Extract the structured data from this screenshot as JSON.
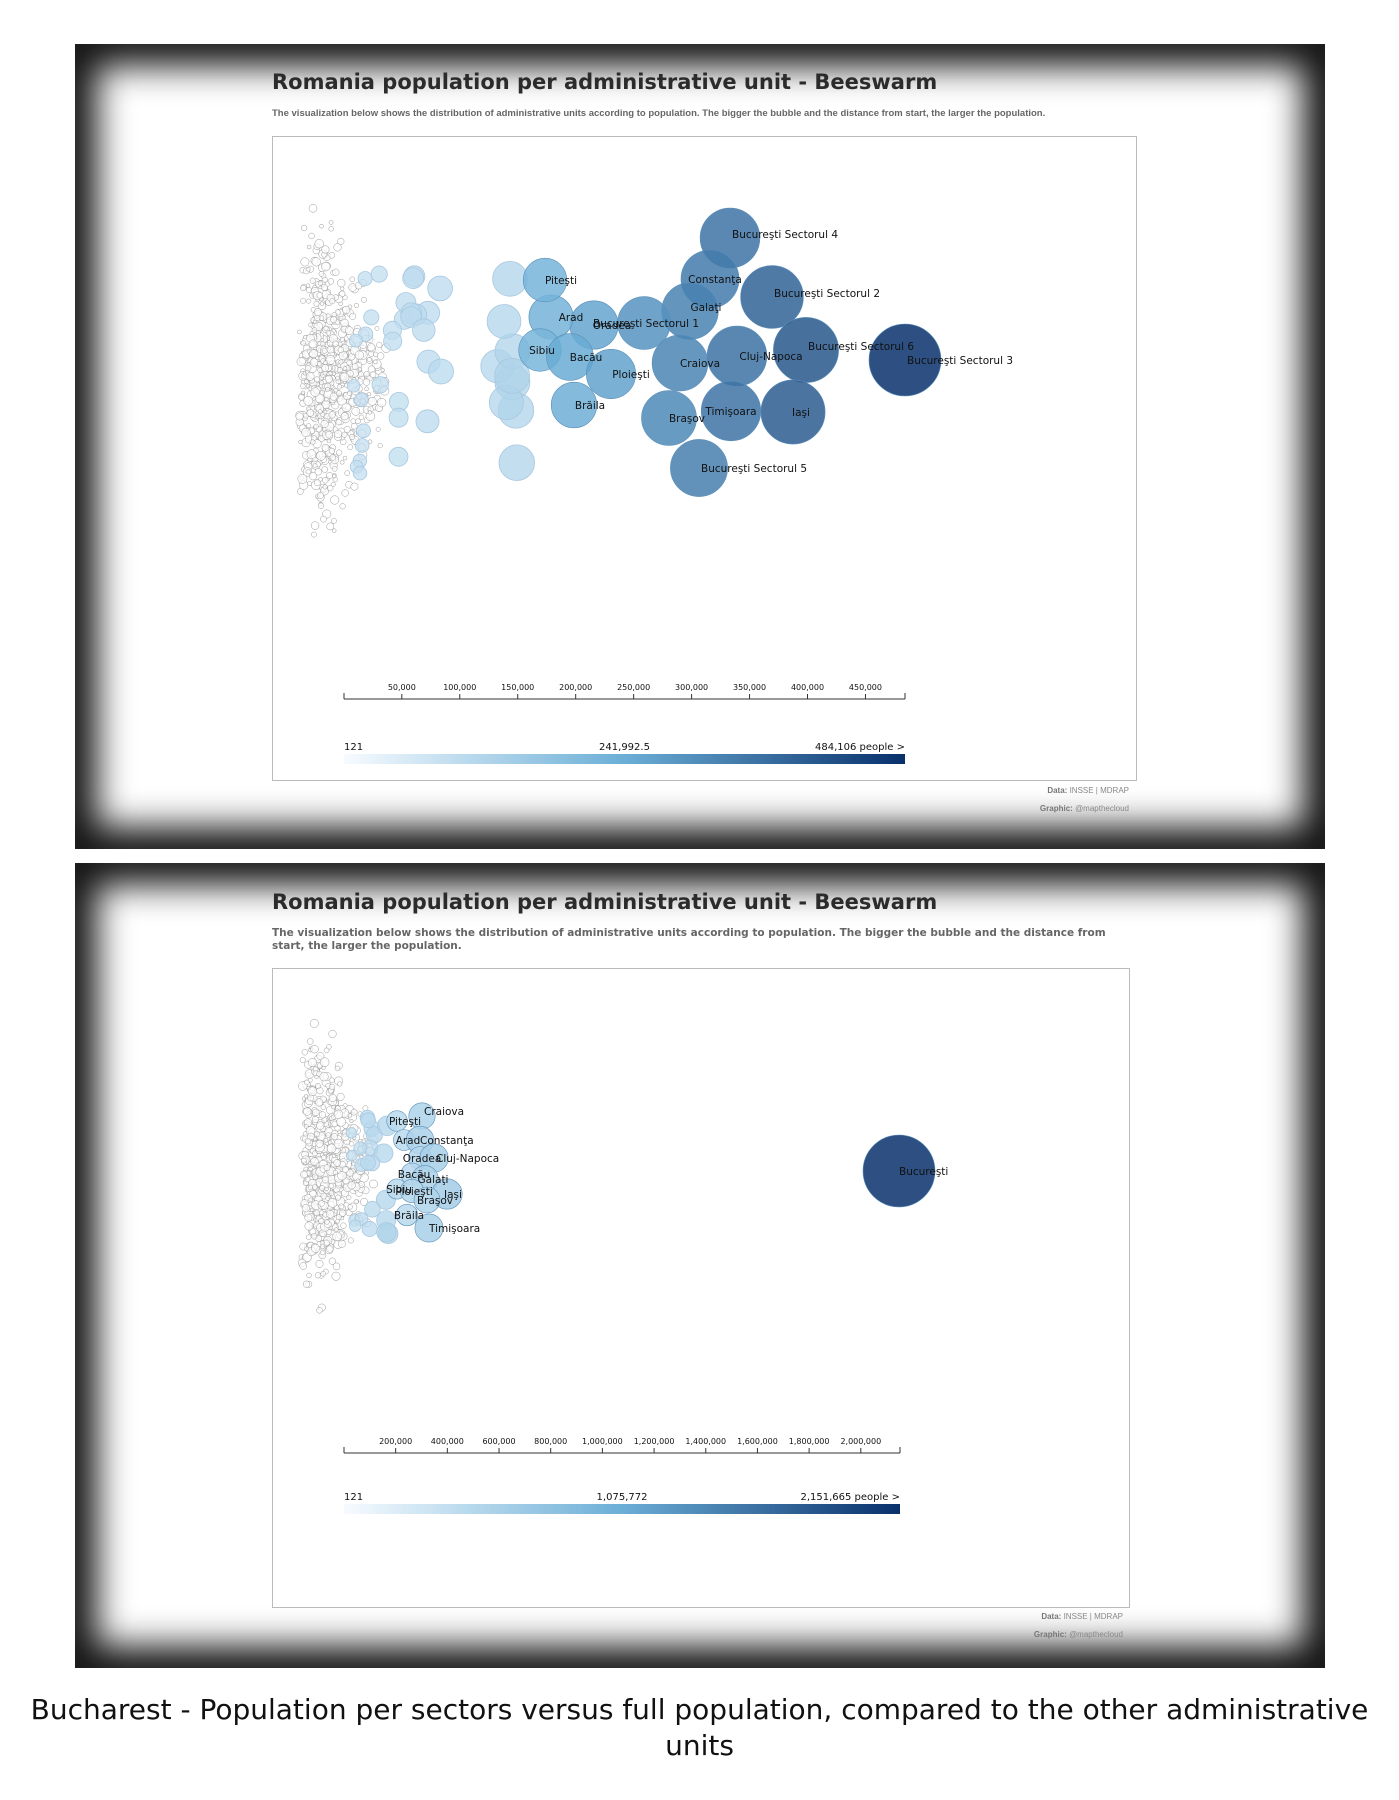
{
  "caption": "Bucharest - Population per sectors versus full population, compared to the other administrative units",
  "colors": {
    "low": "#f7fbff",
    "mid": "#6baed6",
    "high": "#08306b"
  },
  "chart_data": [
    {
      "type": "beeswarm",
      "title": "Romania population per administrative unit - Beeswarm",
      "subtitle": "The visualization below shows the distribution of administrative units according to population. The bigger the bubble and the distance from start, the larger the population.",
      "xlim": [
        121,
        484106
      ],
      "x_ticks": [
        50000,
        100000,
        150000,
        200000,
        250000,
        300000,
        350000,
        400000,
        450000
      ],
      "x_tick_labels": [
        "50,000",
        "100,000",
        "150,000",
        "200,000",
        "250,000",
        "300,000",
        "350,000",
        "400,000",
        "450,000"
      ],
      "legend": {
        "min": "121",
        "mid": "241,992.5",
        "max": "484,106 people >"
      },
      "footer": {
        "data_label": "Data:",
        "data_value": "INSSE | MDRAP",
        "graphic_label": "Graphic:",
        "graphic_value": "@mapthecloud"
      },
      "labeled_points": [
        {
          "name": "Bucureşti Sectorul 4",
          "value": 333000
        },
        {
          "name": "Constanţa",
          "value": 314000
        },
        {
          "name": "Bucureşti Sectorul 2",
          "value": 369000
        },
        {
          "name": "Galaţi",
          "value": 299000
        },
        {
          "name": "Bucureşti Sectorul 1",
          "value": 260000
        },
        {
          "name": "Oradea",
          "value": 219000
        },
        {
          "name": "Arad",
          "value": 182000
        },
        {
          "name": "Piteşti",
          "value": 177000
        },
        {
          "name": "Sibiu",
          "value": 170000
        },
        {
          "name": "Bacău",
          "value": 204000
        },
        {
          "name": "Ploieşti",
          "value": 227000
        },
        {
          "name": "Brăila",
          "value": 194000
        },
        {
          "name": "Craiova",
          "value": 290000
        },
        {
          "name": "Cluj-Napoca",
          "value": 335000
        },
        {
          "name": "Bucureşti Sectorul 6",
          "value": 396000
        },
        {
          "name": "Bucureşti Sectorul 3",
          "value": 484106
        },
        {
          "name": "Timişoara",
          "value": 332000
        },
        {
          "name": "Iaşi",
          "value": 384000
        },
        {
          "name": "Braşov",
          "value": 282000
        },
        {
          "name": "Bucureşti Sectorul 5",
          "value": 306000
        }
      ]
    },
    {
      "type": "beeswarm",
      "title": "Romania population per administrative unit - Beeswarm",
      "subtitle": "The visualization below shows the distribution of administrative units according to population. The bigger the bubble and the distance from start, the larger the population.",
      "xlim": [
        121,
        2151665
      ],
      "x_ticks": [
        200000,
        400000,
        600000,
        800000,
        1000000,
        1200000,
        1400000,
        1600000,
        1800000,
        2000000
      ],
      "x_tick_labels": [
        "200,000",
        "400,000",
        "600,000",
        "800,000",
        "1,000,000",
        "1,200,000",
        "1,400,000",
        "1,600,000",
        "1,800,000",
        "2,000,000"
      ],
      "legend": {
        "min": "121",
        "mid": "1,075,772",
        "max": "2,151,665 people >"
      },
      "footer": {
        "data_label": "Data:",
        "data_value": "INSSE | MDRAP",
        "graphic_label": "Graphic:",
        "graphic_value": "@mapthecloud"
      },
      "labeled_points": [
        {
          "name": "Craiova",
          "value": 290000
        },
        {
          "name": "Piteşti",
          "value": 177000
        },
        {
          "name": "Arad",
          "value": 182000
        },
        {
          "name": "Constanţa",
          "value": 314000
        },
        {
          "name": "Oradea",
          "value": 219000
        },
        {
          "name": "Cluj-Napoca",
          "value": 335000
        },
        {
          "name": "Bacău",
          "value": 204000
        },
        {
          "name": "Galaţi",
          "value": 299000
        },
        {
          "name": "Sibiu",
          "value": 170000
        },
        {
          "name": "Ploieşti",
          "value": 227000
        },
        {
          "name": "Iaşi",
          "value": 384000
        },
        {
          "name": "Braşov",
          "value": 282000
        },
        {
          "name": "Brăila",
          "value": 194000
        },
        {
          "name": "Timişoara",
          "value": 332000
        },
        {
          "name": "Bucureşti",
          "value": 2151665
        }
      ]
    }
  ]
}
